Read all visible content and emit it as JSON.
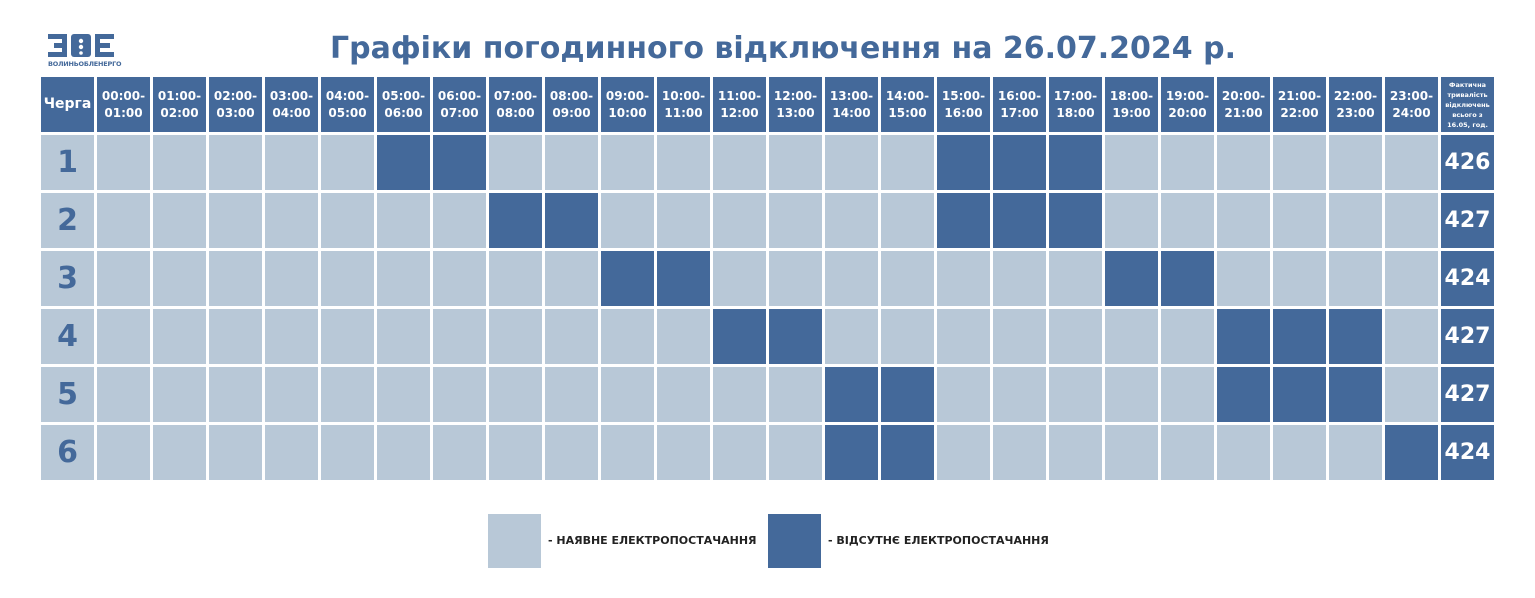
{
  "logo": {
    "mark_text": "ЗОЕ",
    "caption": "ВОЛИНЬОБЛЕНЕРГО"
  },
  "title": "Графіки погодинного відключення на 26.07.2024 р.",
  "table": {
    "queue_header": "Черга",
    "total_header": "Фактична тривалість відключень всього з 16.05, год.",
    "hours": [
      {
        "from": "00:00-",
        "to": "01:00"
      },
      {
        "from": "01:00-",
        "to": "02:00"
      },
      {
        "from": "02:00-",
        "to": "03:00"
      },
      {
        "from": "03:00-",
        "to": "04:00"
      },
      {
        "from": "04:00-",
        "to": "05:00"
      },
      {
        "from": "05:00-",
        "to": "06:00"
      },
      {
        "from": "06:00-",
        "to": "07:00"
      },
      {
        "from": "07:00-",
        "to": "08:00"
      },
      {
        "from": "08:00-",
        "to": "09:00"
      },
      {
        "from": "09:00-",
        "to": "10:00"
      },
      {
        "from": "10:00-",
        "to": "11:00"
      },
      {
        "from": "11:00-",
        "to": "12:00"
      },
      {
        "from": "12:00-",
        "to": "13:00"
      },
      {
        "from": "13:00-",
        "to": "14:00"
      },
      {
        "from": "14:00-",
        "to": "15:00"
      },
      {
        "from": "15:00-",
        "to": "16:00"
      },
      {
        "from": "16:00-",
        "to": "17:00"
      },
      {
        "from": "17:00-",
        "to": "18:00"
      },
      {
        "from": "18:00-",
        "to": "19:00"
      },
      {
        "from": "19:00-",
        "to": "20:00"
      },
      {
        "from": "20:00-",
        "to": "21:00"
      },
      {
        "from": "21:00-",
        "to": "22:00"
      },
      {
        "from": "22:00-",
        "to": "23:00"
      },
      {
        "from": "23:00-",
        "to": "24:00"
      }
    ],
    "rows": [
      {
        "queue": "1",
        "off_hours": [
          5,
          6,
          15,
          16,
          17
        ],
        "total": "426"
      },
      {
        "queue": "2",
        "off_hours": [
          7,
          8,
          15,
          16,
          17
        ],
        "total": "427"
      },
      {
        "queue": "3",
        "off_hours": [
          9,
          10,
          18,
          19
        ],
        "total": "424"
      },
      {
        "queue": "4",
        "off_hours": [
          11,
          12,
          20,
          21,
          22
        ],
        "total": "427"
      },
      {
        "queue": "5",
        "off_hours": [
          13,
          14,
          20,
          21,
          22
        ],
        "total": "427"
      },
      {
        "queue": "6",
        "off_hours": [
          13,
          14,
          23
        ],
        "total": "424"
      }
    ]
  },
  "legend": {
    "on_label": "- НАЯВНЕ ЕЛЕКТРОПОСТАЧАННЯ",
    "off_label": "- ВІДСУТНЄ ЕЛЕКТРОПОСТАЧАННЯ"
  },
  "colors": {
    "on": "#b8c8d7",
    "off": "#44699a",
    "accent": "#44699a"
  }
}
